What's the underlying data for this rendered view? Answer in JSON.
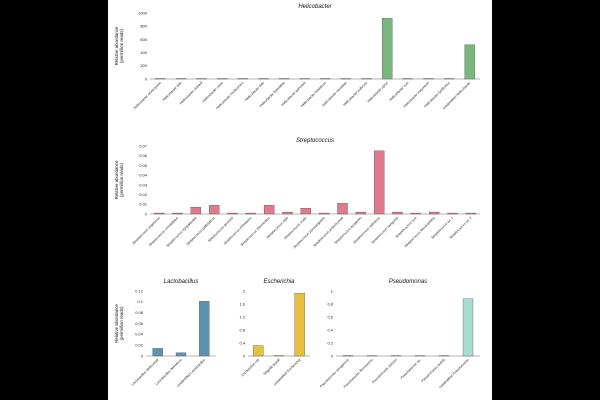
{
  "chart_data": [
    {
      "id": "helicobacter",
      "type": "bar",
      "title": "Helicobacter",
      "ylabel": "Relative abundance (permillion reads)",
      "ylim": [
        0,
        1000
      ],
      "yticks": [
        "0",
        "200",
        "400",
        "600",
        "800",
        "1000"
      ],
      "color": "#79B77C",
      "categories": [
        "Helicobacter acinonychis",
        "Helicobacter bilis",
        "Helicobacter cinaedi",
        "Helicobacter canis",
        "Helicobacter cholecystus",
        "Helicobacter felis",
        "Helicobacter fennelliae",
        "Helicobacter ganmani",
        "Helicobacter hepaticus",
        "Helicobacter mustelae",
        "Helicobacter pullorum",
        "Helicobacter pylori",
        "Helicobacter suis",
        "Helicobacter trogontum",
        "Helicobacter typhlonius",
        "Unidentified Helicobacter"
      ],
      "values": [
        0,
        0,
        0,
        0,
        0,
        0,
        0,
        0,
        0,
        0,
        0,
        920,
        0,
        0,
        0,
        520
      ]
    },
    {
      "id": "streptococcus",
      "type": "bar",
      "title": "Streptococcus",
      "ylabel": "Relative abundance (permillion reads)",
      "ylim": [
        0,
        0.07
      ],
      "yticks": [
        "0",
        "0.01",
        "0.02",
        "0.03",
        "0.04",
        "0.05",
        "0.06",
        "0.07"
      ],
      "color": "#E07A8E",
      "categories": [
        "Streptococcus anginosus",
        "Streptococcus constellatus",
        "Streptococcus dysgalactiae",
        "Streptococcus gallolyticus",
        "Streptococcus gordonii",
        "Streptococcus infantarius",
        "Streptococcus intermedius",
        "Streptococcus mitis",
        "Streptococcus oralis",
        "Streptococcus parasanguinis",
        "Streptococcus pneumoniae",
        "Streptococcus pyogenes",
        "Streptococcus salivarius",
        "Streptococcus sanguinis",
        "Streptococcus suis",
        "Streptococcus thermophilus",
        "Streptococcus sp. 1",
        "Streptococcus sp. 2"
      ],
      "values": [
        0.001,
        0.001,
        0.007,
        0.009,
        0.001,
        0.001,
        0.009,
        0.002,
        0.006,
        0.001,
        0.011,
        0.002,
        0.065,
        0.002,
        0.001,
        0.002,
        0.001,
        0.001
      ]
    },
    {
      "id": "lactobacillus",
      "type": "bar",
      "title": "Lactobacillus",
      "ylabel": "Relative abundance (permillion reads)",
      "ylim": [
        0,
        0.12
      ],
      "yticks": [
        "0",
        "0.02",
        "0.04",
        "0.06",
        "0.08",
        "0.1",
        "0.12"
      ],
      "color": "#5D93AE",
      "categories": [
        "Lactobacillus delbrueckii",
        "Lactobacillus helveticus",
        "Unidentified Lactobacillus"
      ],
      "values": [
        0.014,
        0.006,
        0.101
      ]
    },
    {
      "id": "escherichia",
      "type": "bar",
      "title": "Escherichia",
      "ylabel": "",
      "ylim": [
        0,
        2
      ],
      "yticks": [
        "0",
        "0.4",
        "0.8",
        "1.2",
        "1.6",
        "2"
      ],
      "color": "#E6C040",
      "categories": [
        "Escherichia coli",
        "Shigella boydii",
        "Unidentified Escherichia"
      ],
      "values": [
        0.32,
        0.0,
        1.93
      ]
    },
    {
      "id": "pseudomonas",
      "type": "bar",
      "title": "Pseudomonas",
      "ylabel": "",
      "ylim": [
        0,
        1
      ],
      "yticks": [
        "0",
        "0.2",
        "0.4",
        "0.6",
        "0.8",
        "1"
      ],
      "color": "#A6DCD2",
      "categories": [
        "Pseudomonas aeruginosa",
        "Pseudomonas fluorescens",
        "Pseudomonas stutzeri",
        "Pseudomonas sp.",
        "Pseudomonas putida",
        "Unidentified Pseudomonas"
      ],
      "values": [
        0.01,
        0.0,
        0.0,
        0.0,
        0.0,
        0.88
      ]
    }
  ]
}
